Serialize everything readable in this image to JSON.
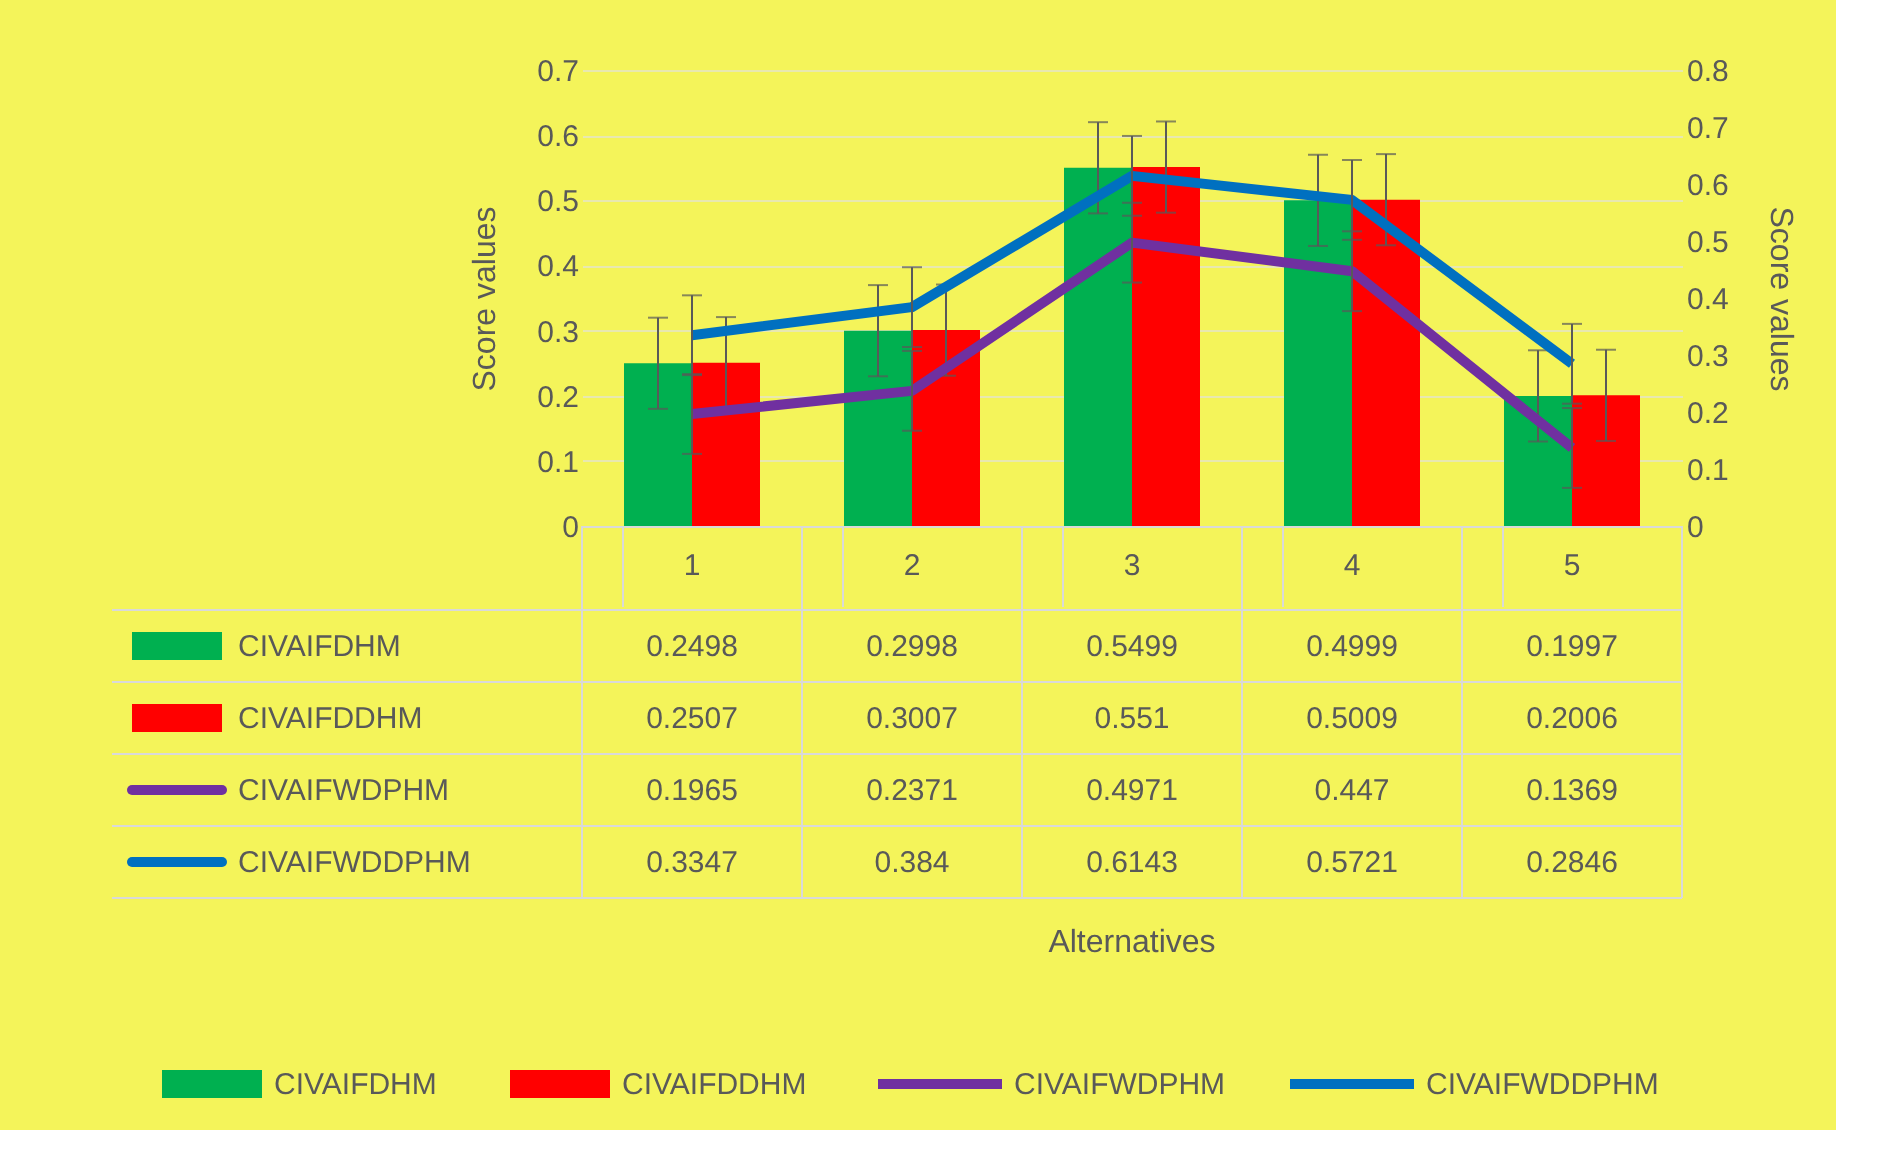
{
  "chart_data": {
    "type": "bar",
    "categories": [
      "1",
      "2",
      "3",
      "4",
      "5"
    ],
    "series": [
      {
        "name": "CIVAIFDHM",
        "color": "#00b050",
        "values": [
          0.2498,
          0.2998,
          0.5499,
          0.4999,
          0.1997
        ],
        "errors": [
          0.07,
          0.07,
          0.07,
          0.07,
          0.07
        ]
      },
      {
        "name": "CIVAIFDDHM",
        "color": "#ff0000",
        "values": [
          0.2507,
          0.3007,
          0.551,
          0.5009,
          0.2006
        ],
        "errors": [
          0.07,
          0.07,
          0.07,
          0.07,
          0.07
        ]
      },
      {
        "name": "CIVAIFWDPHM",
        "type": "line",
        "axis": "y2",
        "color": "#7030a0",
        "values": [
          0.1965,
          0.2371,
          0.4971,
          0.447,
          0.1369
        ],
        "errors": [
          0.07,
          0.07,
          0.07,
          0.07,
          0.07
        ]
      },
      {
        "name": "CIVAIFWDDPHM",
        "type": "line",
        "axis": "y2",
        "color": "#0070c0",
        "values": [
          0.3347,
          0.384,
          0.6143,
          0.5721,
          0.2846
        ],
        "errors": [
          0.07,
          0.07,
          0.07,
          0.07,
          0.07
        ]
      }
    ],
    "annotations": [
      "Alternatives"
    ],
    "ylabel": "Score values",
    "y2label": "Score values",
    "ylim": [
      0,
      0.7
    ],
    "yticks": [
      0,
      0.1,
      0.2,
      0.3,
      0.4,
      0.5,
      0.6,
      0.7
    ],
    "y2lim": [
      0,
      0.8
    ],
    "y2ticks": [
      0,
      0.1,
      0.2,
      0.3,
      0.4,
      0.5,
      0.6,
      0.7,
      0.8
    ],
    "grid": "y",
    "legend": "bottom",
    "data_labels": true
  }
}
